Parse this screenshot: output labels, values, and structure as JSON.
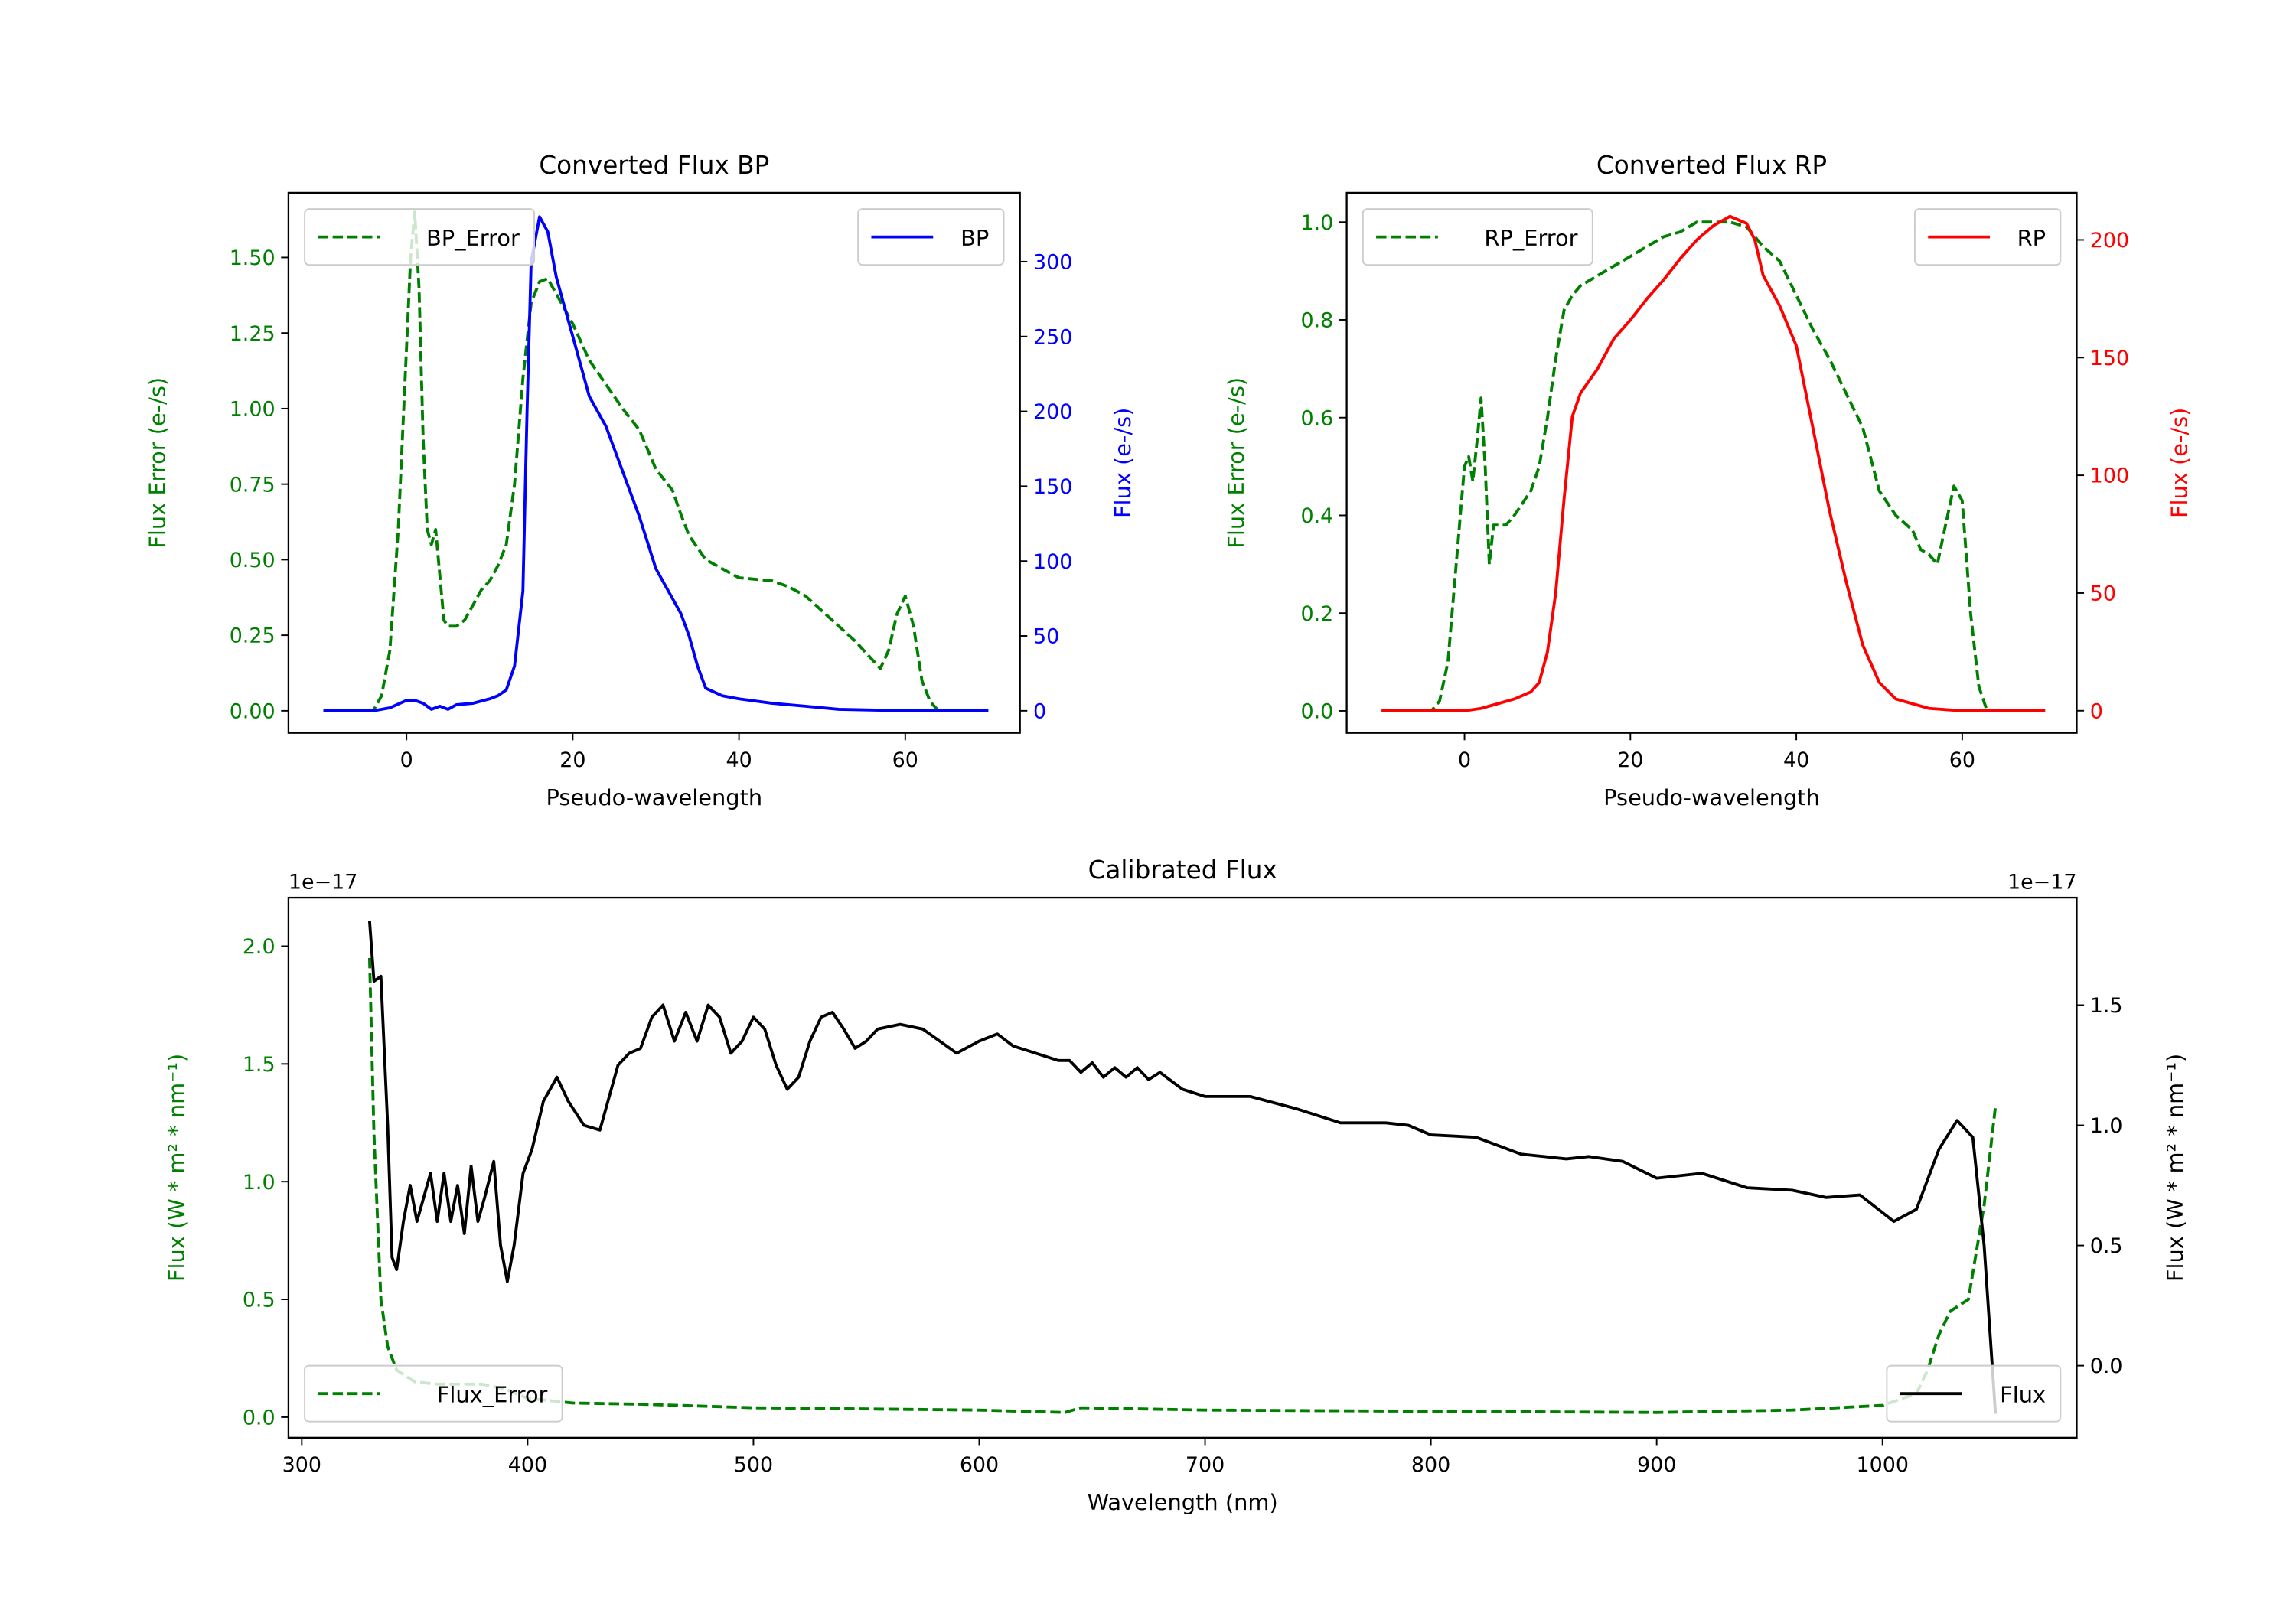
{
  "colors": {
    "error": "#008000",
    "bp": "#0000ff",
    "rp": "#ff0000",
    "flux": "#000000"
  },
  "chart_data": [
    {
      "id": "bp",
      "type": "line",
      "title": "Converted Flux BP",
      "xlabel": "Pseudo-wavelength",
      "ylabel_left": "Flux Error (e-/s)",
      "ylabel_right": "Flux (e-/s)",
      "xlim": [
        -14.2,
        73.8
      ],
      "ylim_left": [
        -0.073,
        1.714
      ],
      "ylim_right": [
        -14.75,
        346
      ],
      "xticks": [
        0,
        20,
        40,
        60
      ],
      "xtick_labels": [
        "0",
        "20",
        "40",
        "60"
      ],
      "yticks_left": [
        0,
        0.25,
        0.5,
        0.75,
        1.0,
        1.25,
        1.5
      ],
      "ytick_labels_left": [
        "0.00",
        "0.25",
        "0.50",
        "0.75",
        "1.00",
        "1.25",
        "1.50"
      ],
      "yticks_right": [
        0,
        50,
        100,
        150,
        200,
        250,
        300
      ],
      "ytick_labels_right": [
        "0",
        "50",
        "100",
        "150",
        "200",
        "250",
        "300"
      ],
      "right_color": "#0000ff",
      "legend_left": "upper left",
      "legend_right": "upper right",
      "series": [
        {
          "name": "BP_Error",
          "axis": "left",
          "style": "dashed",
          "color": "#008000",
          "x": [
            -10,
            -4,
            -3,
            -2,
            -1,
            0,
            0.5,
            1,
            1.5,
            2,
            2.5,
            3,
            3.5,
            4,
            4.5,
            5,
            6,
            7,
            8,
            9,
            10,
            11,
            12,
            13,
            14,
            15,
            16,
            17,
            18,
            20,
            22,
            24,
            26,
            28,
            30,
            32,
            33,
            34,
            36,
            38,
            40,
            44,
            46,
            48,
            50,
            52,
            54,
            56,
            57,
            58,
            59,
            60,
            61,
            62,
            63,
            64,
            70
          ],
          "y": [
            0,
            0,
            0.05,
            0.2,
            0.6,
            1.2,
            1.5,
            1.65,
            1.4,
            0.9,
            0.6,
            0.55,
            0.6,
            0.45,
            0.3,
            0.28,
            0.28,
            0.3,
            0.35,
            0.4,
            0.43,
            0.48,
            0.55,
            0.75,
            1.1,
            1.35,
            1.42,
            1.43,
            1.38,
            1.28,
            1.16,
            1.08,
            1.0,
            0.93,
            0.8,
            0.73,
            0.65,
            0.58,
            0.5,
            0.47,
            0.44,
            0.43,
            0.41,
            0.38,
            0.33,
            0.28,
            0.23,
            0.17,
            0.14,
            0.2,
            0.32,
            0.38,
            0.28,
            0.1,
            0.03,
            0,
            0
          ]
        },
        {
          "name": "BP",
          "axis": "right",
          "style": "solid",
          "color": "#0000ff",
          "x": [
            -10,
            -4,
            -2,
            0,
            1,
            2,
            3,
            4,
            5,
            6,
            8,
            10,
            11,
            12,
            13,
            14,
            14.5,
            15,
            16,
            17,
            18,
            19,
            20,
            21,
            22,
            24,
            26,
            28,
            30,
            32,
            33,
            34,
            35,
            36,
            38,
            40,
            44,
            48,
            52,
            60,
            70
          ],
          "y": [
            0,
            0,
            2,
            7,
            7,
            5,
            1,
            3,
            1,
            4,
            5,
            8,
            10,
            14,
            30,
            80,
            200,
            300,
            330,
            320,
            290,
            270,
            250,
            230,
            210,
            190,
            160,
            130,
            95,
            75,
            65,
            50,
            30,
            15,
            10,
            8,
            5,
            3,
            1,
            0,
            0
          ]
        }
      ]
    },
    {
      "id": "rp",
      "type": "line",
      "title": "Converted Flux RP",
      "xlabel": "Pseudo-wavelength",
      "ylabel_left": "Flux Error (e-/s)",
      "ylabel_right": "Flux (e-/s)",
      "xlim": [
        -14.2,
        73.8
      ],
      "ylim_left": [
        -0.045,
        1.06
      ],
      "ylim_right": [
        -9.4,
        220
      ],
      "xticks": [
        0,
        20,
        40,
        60
      ],
      "xtick_labels": [
        "0",
        "20",
        "40",
        "60"
      ],
      "yticks_left": [
        0,
        0.2,
        0.4,
        0.6,
        0.8,
        1.0
      ],
      "ytick_labels_left": [
        "0.0",
        "0.2",
        "0.4",
        "0.6",
        "0.8",
        "1.0"
      ],
      "yticks_right": [
        0,
        50,
        100,
        150,
        200
      ],
      "ytick_labels_right": [
        "0",
        "50",
        "100",
        "150",
        "200"
      ],
      "right_color": "#ff0000",
      "legend_left": "upper left",
      "legend_right": "upper right",
      "series": [
        {
          "name": "RP_Error",
          "axis": "left",
          "style": "dashed",
          "color": "#008000",
          "x": [
            -10,
            -4,
            -3,
            -2,
            -1,
            0,
            0.5,
            1,
            1.5,
            2,
            2.5,
            3,
            3.5,
            5,
            6,
            8,
            9,
            10,
            11,
            12,
            13,
            14,
            16,
            18,
            20,
            22,
            24,
            26,
            28,
            30,
            32,
            34,
            36,
            38,
            40,
            42,
            44,
            46,
            48,
            50,
            52,
            54,
            55,
            56,
            57,
            58,
            59,
            60,
            61,
            62,
            63,
            70
          ],
          "y": [
            0,
            0,
            0.02,
            0.1,
            0.3,
            0.5,
            0.52,
            0.47,
            0.55,
            0.64,
            0.5,
            0.3,
            0.38,
            0.38,
            0.4,
            0.45,
            0.5,
            0.6,
            0.72,
            0.82,
            0.85,
            0.87,
            0.89,
            0.91,
            0.93,
            0.95,
            0.97,
            0.98,
            1.0,
            1.0,
            1.0,
            0.99,
            0.95,
            0.92,
            0.85,
            0.78,
            0.72,
            0.65,
            0.58,
            0.45,
            0.4,
            0.37,
            0.33,
            0.32,
            0.3,
            0.38,
            0.46,
            0.43,
            0.2,
            0.05,
            0,
            0
          ]
        },
        {
          "name": "RP",
          "axis": "right",
          "style": "solid",
          "color": "#ff0000",
          "x": [
            -10,
            -2,
            0,
            2,
            4,
            6,
            8,
            9,
            10,
            11,
            12,
            13,
            14,
            16,
            18,
            20,
            22,
            24,
            26,
            28,
            30,
            32,
            34,
            35,
            36,
            38,
            40,
            42,
            44,
            46,
            48,
            50,
            52,
            54,
            56,
            60,
            70
          ],
          "y": [
            0,
            0,
            0,
            1,
            3,
            5,
            8,
            12,
            25,
            50,
            90,
            125,
            135,
            145,
            158,
            166,
            175,
            183,
            192,
            200,
            206,
            210,
            207,
            200,
            185,
            172,
            155,
            120,
            85,
            55,
            28,
            12,
            5,
            3,
            1,
            0,
            0
          ]
        }
      ]
    },
    {
      "id": "cal",
      "type": "line",
      "title": "Calibrated Flux",
      "xlabel": "Wavelength (nm)",
      "ylabel_left": "Flux (W * m² * nm⁻¹)",
      "ylabel_right": "Flux (W * m² * nm⁻¹)",
      "offset_left": "1e−17",
      "offset_right": "1e−17",
      "xlim": [
        294.1,
        1086
      ],
      "ylim_left": [
        -0.0875,
        2.206
      ],
      "ylim_right": [
        -0.3,
        1.947
      ],
      "xticks": [
        300,
        400,
        500,
        600,
        700,
        800,
        900,
        1000
      ],
      "xtick_labels": [
        "300",
        "400",
        "500",
        "600",
        "700",
        "800",
        "900",
        "1000"
      ],
      "yticks_left": [
        0,
        0.5,
        1.0,
        1.5,
        2.0
      ],
      "ytick_labels_left": [
        "0.0",
        "0.5",
        "1.0",
        "1.5",
        "2.0"
      ],
      "yticks_right": [
        0,
        0.5,
        1.0,
        1.5
      ],
      "ytick_labels_right": [
        "0.0",
        "0.5",
        "1.0",
        "1.5"
      ],
      "right_color": "#000000",
      "legend_left": "lower left",
      "legend_right": "lower right",
      "series": [
        {
          "name": "Flux_Error",
          "axis": "left",
          "style": "dashed",
          "color": "#008000",
          "x": [
            330,
            332,
            335,
            338,
            342,
            350,
            360,
            380,
            390,
            400,
            420,
            450,
            500,
            600,
            638,
            645,
            700,
            800,
            900,
            960,
            1000,
            1015,
            1020,
            1025,
            1030,
            1038,
            1045,
            1050
          ],
          "y": [
            1.95,
            1.2,
            0.5,
            0.3,
            0.2,
            0.15,
            0.14,
            0.14,
            0.12,
            0.08,
            0.06,
            0.055,
            0.04,
            0.03,
            0.02,
            0.04,
            0.03,
            0.025,
            0.02,
            0.03,
            0.05,
            0.1,
            0.2,
            0.35,
            0.45,
            0.5,
            0.9,
            1.32
          ]
        },
        {
          "name": "Flux",
          "axis": "right",
          "style": "solid",
          "color": "#000000",
          "x": [
            330,
            332,
            335,
            338,
            340,
            342,
            345,
            348,
            351,
            354,
            357,
            360,
            363,
            366,
            369,
            372,
            375,
            378,
            381,
            385,
            388,
            391,
            394,
            398,
            402,
            407,
            413,
            418,
            425,
            432,
            440,
            445,
            450,
            455,
            460,
            465,
            470,
            475,
            480,
            485,
            490,
            495,
            500,
            505,
            510,
            515,
            520,
            525,
            530,
            535,
            540,
            545,
            550,
            555,
            565,
            575,
            590,
            600,
            608,
            615,
            625,
            635,
            640,
            645,
            650,
            655,
            660,
            665,
            670,
            675,
            680,
            690,
            700,
            720,
            740,
            760,
            780,
            790,
            800,
            820,
            840,
            860,
            870,
            885,
            900,
            920,
            940,
            960,
            975,
            990,
            1005,
            1015,
            1025,
            1033,
            1040,
            1045,
            1050
          ],
          "y": [
            1.85,
            1.6,
            1.62,
            1.0,
            0.45,
            0.4,
            0.6,
            0.75,
            0.6,
            0.7,
            0.8,
            0.6,
            0.8,
            0.6,
            0.75,
            0.55,
            0.83,
            0.6,
            0.7,
            0.85,
            0.5,
            0.35,
            0.5,
            0.8,
            0.9,
            1.1,
            1.2,
            1.1,
            1.0,
            0.98,
            1.25,
            1.3,
            1.32,
            1.45,
            1.5,
            1.35,
            1.47,
            1.35,
            1.5,
            1.45,
            1.3,
            1.35,
            1.45,
            1.4,
            1.25,
            1.15,
            1.2,
            1.35,
            1.45,
            1.47,
            1.4,
            1.32,
            1.35,
            1.4,
            1.42,
            1.4,
            1.3,
            1.35,
            1.38,
            1.33,
            1.3,
            1.27,
            1.27,
            1.22,
            1.26,
            1.2,
            1.24,
            1.2,
            1.24,
            1.19,
            1.22,
            1.15,
            1.12,
            1.12,
            1.07,
            1.01,
            1.01,
            1.0,
            0.96,
            0.95,
            0.88,
            0.86,
            0.87,
            0.85,
            0.78,
            0.8,
            0.74,
            0.73,
            0.7,
            0.71,
            0.6,
            0.65,
            0.9,
            1.02,
            0.95,
            0.5,
            -0.2
          ]
        }
      ]
    }
  ]
}
